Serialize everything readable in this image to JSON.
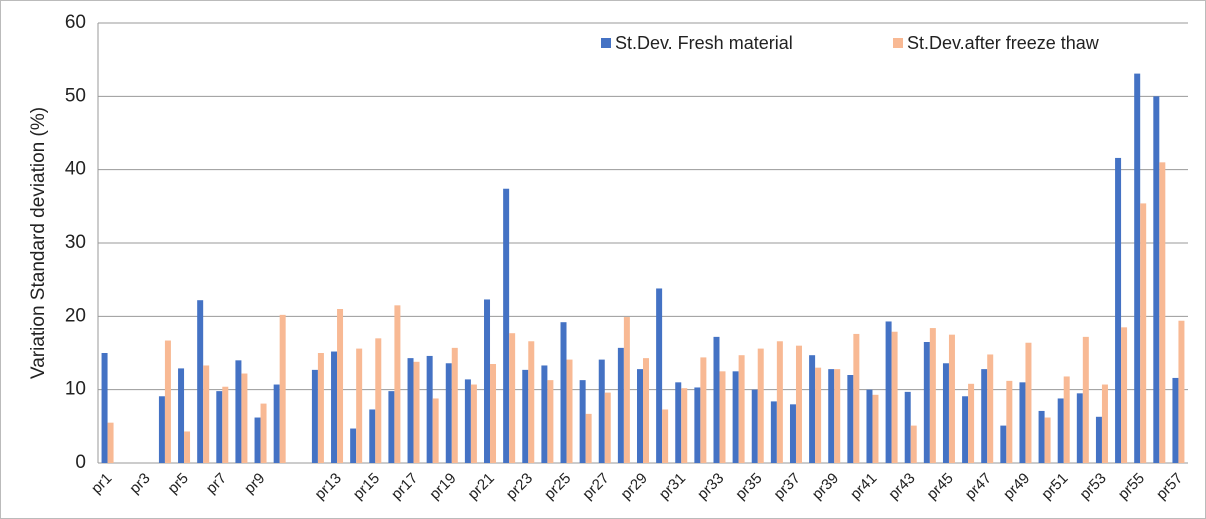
{
  "chart_data": {
    "type": "bar",
    "y_label": "Variation Standard deviation (%)",
    "categories": [
      "pr1",
      null,
      "pr3",
      null,
      "pr5",
      null,
      "pr7",
      null,
      "pr9",
      null,
      null,
      null,
      "pr13",
      null,
      "pr15",
      null,
      "pr17",
      null,
      "pr19",
      null,
      "pr21",
      null,
      "pr23",
      null,
      "pr25",
      null,
      "pr27",
      null,
      "pr29",
      null,
      "pr31",
      null,
      "pr33",
      null,
      "pr35",
      null,
      "pr37",
      null,
      "pr39",
      null,
      "pr41",
      null,
      "pr43",
      null,
      "pr45",
      null,
      "pr47",
      null,
      "pr49",
      null,
      "pr51",
      null,
      "pr53",
      null,
      "pr55",
      null,
      "pr57"
    ],
    "series": [
      {
        "name": "St.Dev. Fresh material",
        "color": "#4472c4",
        "values": [
          15,
          null,
          null,
          9.1,
          12.9,
          22.2,
          9.8,
          14,
          6.2,
          10.7,
          null,
          12.7,
          15.2,
          4.7,
          7.3,
          9.8,
          14.3,
          14.6,
          13.6,
          11.4,
          22.3,
          37.4,
          12.7,
          13.3,
          19.2,
          11.3,
          14.1,
          15.7,
          12.8,
          23.8,
          11,
          10.3,
          17.2,
          12.5,
          10,
          8.4,
          8,
          14.7,
          12.8,
          12,
          10,
          19.3,
          9.7,
          16.5,
          13.6,
          9.1,
          12.8,
          5.1,
          11,
          7.1,
          8.8,
          9.5,
          6.3,
          41.6,
          53.1,
          50,
          11.6
        ]
      },
      {
        "name": "St.Dev.after freeze thaw",
        "color": "#f8b994",
        "values": [
          5.5,
          null,
          null,
          16.7,
          4.3,
          13.3,
          10.4,
          12.2,
          8.1,
          20.2,
          null,
          15,
          21,
          15.6,
          17,
          21.5,
          13.8,
          8.8,
          15.7,
          10.7,
          13.5,
          17.7,
          16.6,
          11.3,
          14.1,
          6.7,
          9.6,
          19.9,
          14.3,
          7.3,
          10.2,
          14.4,
          12.5,
          14.7,
          15.6,
          16.6,
          16,
          13,
          12.8,
          17.6,
          9.3,
          17.9,
          5.1,
          18.4,
          17.5,
          10.8,
          14.8,
          11.2,
          16.4,
          6.2,
          11.8,
          17.2,
          10.7,
          18.5,
          35.4,
          41,
          19.4
        ]
      }
    ],
    "ylim": [
      0,
      60
    ],
    "yticks": [
      0,
      10,
      20,
      30,
      40,
      50,
      60
    ],
    "grid": true,
    "legend": "upper right"
  }
}
